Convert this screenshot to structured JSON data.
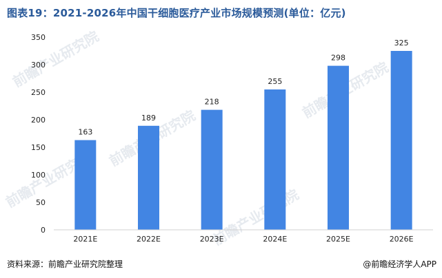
{
  "title": "图表19：2021-2026年中国干细胞医疗产业市场规模预测(单位：亿元)",
  "source_note": "资料来源：前瞻产业研究院整理",
  "brand_note": "@前瞻经济学人APP",
  "watermark": "前瞻产业研究院",
  "colors": {
    "bar": "#4285e3",
    "title": "#2a5a9a"
  },
  "chart_data": {
    "type": "bar",
    "title": "图表19：2021-2026年中国干细胞医疗产业市场规模预测(单位：亿元)",
    "categories": [
      "2021E",
      "2022E",
      "2023E",
      "2024E",
      "2025E",
      "2026E"
    ],
    "values": [
      163,
      189,
      218,
      255,
      298,
      325
    ],
    "data_labels": [
      "163",
      "189",
      "218",
      "255",
      "298",
      "325"
    ],
    "xlabel": "",
    "ylabel": "",
    "ylim": [
      0,
      350
    ],
    "yticks": [
      0,
      50,
      100,
      150,
      200,
      250,
      300,
      350
    ],
    "grid": false,
    "legend": "none"
  }
}
